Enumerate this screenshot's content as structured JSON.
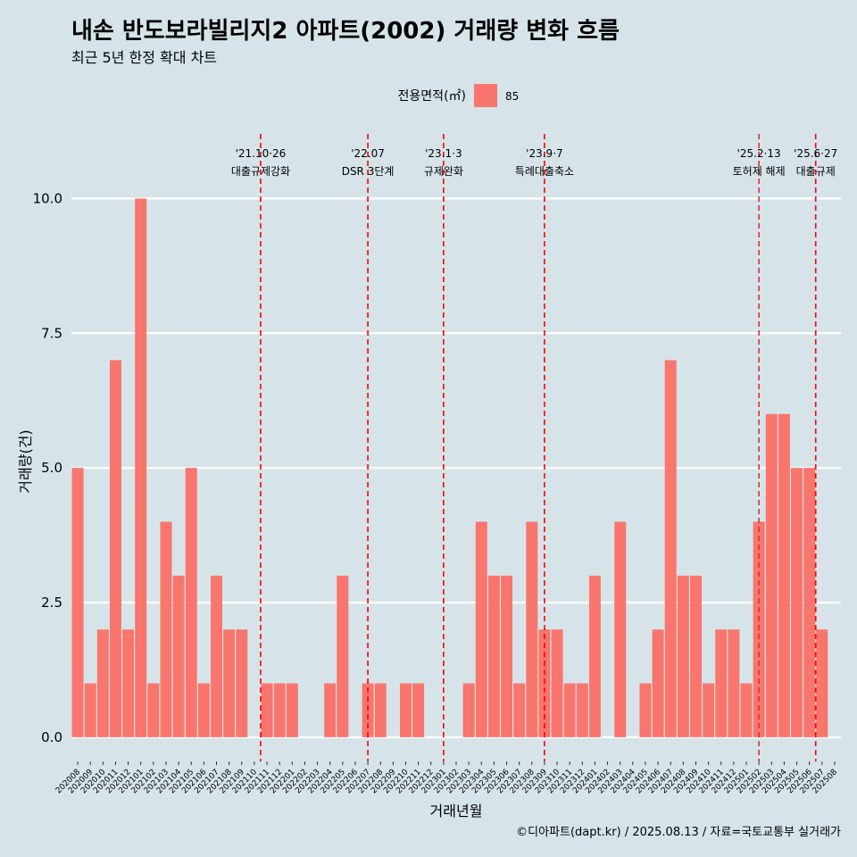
{
  "chart_data": {
    "type": "bar",
    "title": "내손 반도보라빌리지2 아파트(2002) 거래량 변화 흐름",
    "subtitle": "최근 5년 한정 확대 차트",
    "xlabel": "거래년월",
    "ylabel": "거래량(건)",
    "ylim": [
      -0.45,
      11.2
    ],
    "yticks": [
      "0.0",
      "2.5",
      "5.0",
      "7.5",
      "10.0"
    ],
    "ytick_values": [
      0,
      2.5,
      5,
      7.5,
      10
    ],
    "grid": true,
    "legend": {
      "title": "전용면적(㎡)",
      "position": "top",
      "entries": [
        {
          "label": "85",
          "color": "#f8766d"
        }
      ]
    },
    "caption": "©디아파트(dapt.kr) / 2025.08.13 / 자료=국토교통부 실거래가",
    "categories": [
      "202008",
      "202009",
      "202010",
      "202011",
      "202012",
      "202101",
      "202102",
      "202103",
      "202104",
      "202105",
      "202106",
      "202107",
      "202108",
      "202109",
      "202110",
      "202111",
      "202112",
      "202201",
      "202202",
      "202203",
      "202204",
      "202205",
      "202206",
      "202207",
      "202208",
      "202209",
      "202210",
      "202211",
      "202212",
      "202301",
      "202302",
      "202303",
      "202304",
      "202305",
      "202306",
      "202307",
      "202308",
      "202309",
      "202310",
      "202311",
      "202312",
      "202401",
      "202402",
      "202403",
      "202404",
      "202405",
      "202406",
      "202407",
      "202408",
      "202409",
      "202410",
      "202411",
      "202412",
      "202501",
      "202502",
      "202503",
      "202504",
      "202505",
      "202506",
      "202507",
      "202508"
    ],
    "series": [
      {
        "name": "85",
        "color": "#f8766d",
        "values": [
          5,
          1,
          2,
          7,
          2,
          10,
          1,
          4,
          3,
          5,
          1,
          3,
          2,
          2,
          0,
          1,
          1,
          1,
          0,
          0,
          1,
          3,
          0,
          1,
          1,
          0,
          1,
          1,
          0,
          0,
          0,
          1,
          4,
          3,
          3,
          1,
          4,
          2,
          2,
          1,
          1,
          3,
          0,
          4,
          0,
          1,
          2,
          7,
          3,
          3,
          1,
          2,
          2,
          1,
          4,
          6,
          6,
          5,
          5,
          2,
          0
        ]
      }
    ],
    "annotations": [
      {
        "label_top": "'21.10·26",
        "label_bottom": "대출규제강화",
        "category": "202110",
        "offset": 0.5,
        "style": "dashed",
        "color": "#ff0000"
      },
      {
        "label_top": "'22.07",
        "label_bottom": "DSR 3단계",
        "category": "202207",
        "offset": 0.0,
        "style": "dashed",
        "color": "#ff0000"
      },
      {
        "label_top": "'23.1·3",
        "label_bottom": "규제완화",
        "category": "202301",
        "offset": 0.0,
        "style": "dashed",
        "color": "#ff0000"
      },
      {
        "label_top": "'23.9·7",
        "label_bottom": "특례대출축소",
        "category": "202309",
        "offset": 0.0,
        "style": "dashed",
        "color": "#ff0000"
      },
      {
        "label_top": "'25.2·13",
        "label_bottom": "토허제 해제",
        "category": "202502",
        "offset": 0.0,
        "style": "dashed",
        "color": "#e03030"
      },
      {
        "label_top": "'25.6·27",
        "label_bottom": "대출규제",
        "category": "202506",
        "offset": 0.5,
        "style": "dashed",
        "color": "#ff0000"
      }
    ]
  }
}
